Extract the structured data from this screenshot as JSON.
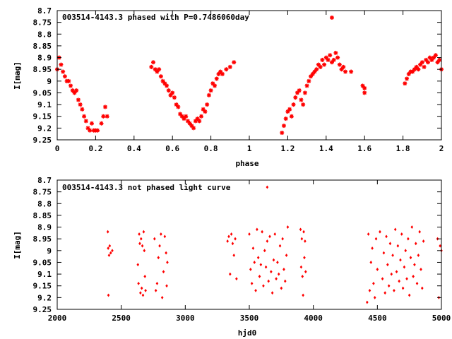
{
  "colors": {
    "points": "#ff0000",
    "axes": "#000000",
    "background": "#ffffff"
  },
  "chart_data": [
    {
      "type": "scatter",
      "title": "003514-4143.3 phased with P=0.7486060day",
      "xlabel": "phase",
      "ylabel": "I[mag]",
      "xlim": [
        0,
        2
      ],
      "ylim": [
        9.25,
        8.7
      ],
      "y_reversed": true,
      "xticks": [
        "0",
        "0.2",
        "0.4",
        "0.6",
        "0.8",
        "1",
        "1.2",
        "1.4",
        "1.6",
        "1.8",
        "2"
      ],
      "yticks": [
        "8.7",
        "8.75",
        "8.8",
        "8.85",
        "8.9",
        "8.95",
        "9",
        "9.05",
        "9.1",
        "9.15",
        "9.2",
        "9.25"
      ],
      "marker": "star",
      "series": [
        {
          "x": [
            0.0,
            0.01,
            0.02,
            0.03,
            0.04,
            0.05,
            0.06,
            0.07,
            0.08,
            0.09,
            0.1,
            0.11,
            0.12,
            0.13,
            0.14,
            0.15,
            0.16,
            0.17,
            0.18,
            0.19,
            0.2,
            0.21,
            0.23,
            0.24,
            0.25,
            0.26,
            0.49,
            0.5,
            0.51,
            0.52,
            0.53,
            0.54,
            0.55,
            0.56,
            0.57,
            0.58,
            0.59,
            0.6,
            0.61,
            0.62,
            0.63,
            0.64,
            0.65,
            0.66,
            0.67,
            0.68,
            0.69,
            0.7,
            0.71,
            0.72,
            0.73,
            0.74,
            0.75,
            0.76,
            0.77,
            0.78,
            0.79,
            0.8,
            0.81,
            0.82,
            0.83,
            0.84,
            0.85,
            0.86,
            0.88,
            0.9,
            0.92,
            1.17,
            1.18,
            1.19,
            1.2,
            1.21,
            1.22,
            1.23,
            1.24,
            1.25,
            1.26,
            1.27,
            1.28,
            1.29,
            1.3,
            1.31,
            1.32,
            1.33,
            1.34,
            1.35,
            1.36,
            1.37,
            1.38,
            1.39,
            1.4,
            1.41,
            1.42,
            1.43,
            1.44,
            1.45,
            1.46,
            1.47,
            1.48,
            1.49,
            1.5,
            1.53,
            1.59,
            1.6,
            1.6,
            1.81,
            1.82,
            1.83,
            1.84,
            1.85,
            1.86,
            1.87,
            1.88,
            1.89,
            1.9,
            1.91,
            1.92,
            1.93,
            1.94,
            1.95,
            1.96,
            1.97,
            1.98,
            1.99,
            2.0,
            1.43
          ],
          "y": [
            8.95,
            8.9,
            8.93,
            8.96,
            8.98,
            9.0,
            9.0,
            9.02,
            9.04,
            9.05,
            9.04,
            9.08,
            9.1,
            9.12,
            9.15,
            9.17,
            9.2,
            9.21,
            9.18,
            9.21,
            9.21,
            9.21,
            9.18,
            9.15,
            9.11,
            9.15,
            8.94,
            8.92,
            8.95,
            8.96,
            8.95,
            8.98,
            9.0,
            9.01,
            9.02,
            9.04,
            9.06,
            9.05,
            9.07,
            9.1,
            9.11,
            9.14,
            9.15,
            9.16,
            9.15,
            9.17,
            9.18,
            9.19,
            9.2,
            9.17,
            9.16,
            9.17,
            9.15,
            9.12,
            9.13,
            9.1,
            9.06,
            9.04,
            9.01,
            9.02,
            8.99,
            8.97,
            8.96,
            8.97,
            8.95,
            8.94,
            8.92,
            9.22,
            9.19,
            9.16,
            9.13,
            9.12,
            9.15,
            9.1,
            9.07,
            9.05,
            9.04,
            9.08,
            9.1,
            9.05,
            9.02,
            9.0,
            8.98,
            8.97,
            8.96,
            8.95,
            8.93,
            8.94,
            8.91,
            8.93,
            8.9,
            8.91,
            8.89,
            8.92,
            8.91,
            8.88,
            8.9,
            8.93,
            8.95,
            8.94,
            8.96,
            8.96,
            9.02,
            9.03,
            9.05,
            9.01,
            8.99,
            8.97,
            8.96,
            8.96,
            8.95,
            8.94,
            8.95,
            8.93,
            8.92,
            8.94,
            8.91,
            8.92,
            8.9,
            8.91,
            8.9,
            8.89,
            8.92,
            8.91,
            8.95,
            8.73
          ]
        }
      ]
    },
    {
      "type": "scatter",
      "title": "003514-4143.3 not phased light curve",
      "xlabel": "hjd0",
      "ylabel": "I[mag]",
      "xlim": [
        2000,
        5000
      ],
      "ylim": [
        9.25,
        8.7
      ],
      "y_reversed": true,
      "xticks": [
        "2000",
        "2500",
        "3000",
        "3500",
        "4000",
        "4500",
        "5000"
      ],
      "yticks": [
        "8.7",
        "8.75",
        "8.8",
        "8.85",
        "8.9",
        "8.95",
        "9",
        "9.05",
        "9.1",
        "9.15",
        "9.2",
        "9.25"
      ],
      "marker": "diamond",
      "series": [
        {
          "x": [
            2395,
            2398,
            2400,
            2405,
            2410,
            2418,
            2430,
            2630,
            2635,
            2640,
            2645,
            2650,
            2655,
            2660,
            2665,
            2670,
            2675,
            2680,
            2685,
            2690,
            2760,
            2770,
            2780,
            2790,
            2800,
            2810,
            2820,
            2830,
            2840,
            2850,
            2855,
            2860,
            3330,
            3340,
            3350,
            3360,
            3370,
            3380,
            3390,
            3400,
            3500,
            3510,
            3520,
            3530,
            3540,
            3550,
            3560,
            3570,
            3580,
            3590,
            3600,
            3610,
            3620,
            3630,
            3640,
            3650,
            3660,
            3670,
            3680,
            3690,
            3700,
            3710,
            3720,
            3730,
            3740,
            3750,
            3760,
            3770,
            3780,
            3790,
            3800,
            3900,
            3905,
            3910,
            3915,
            3920,
            3925,
            3930,
            3935,
            3940,
            4420,
            4430,
            4440,
            4450,
            4460,
            4470,
            4480,
            4490,
            4500,
            4520,
            4540,
            4550,
            4560,
            4570,
            4580,
            4590,
            4600,
            4610,
            4620,
            4630,
            4640,
            4650,
            4660,
            4670,
            4680,
            4690,
            4700,
            4710,
            4720,
            4730,
            4740,
            4750,
            4760,
            4770,
            4780,
            4790,
            4800,
            4810,
            4820,
            4830,
            4840,
            4850,
            4860,
            4970,
            4980,
            4990,
            5000,
            3640
          ],
          "y": [
            8.92,
            8.99,
            9.19,
            9.02,
            8.98,
            9.01,
            9.0,
            9.06,
            9.14,
            8.93,
            8.97,
            9.18,
            8.95,
            9.16,
            8.98,
            9.19,
            8.92,
            9.0,
            9.11,
            9.17,
            8.95,
            9.17,
            9.14,
            9.03,
            8.98,
            8.93,
            9.2,
            9.09,
            8.94,
            9.01,
            9.15,
            9.05,
            8.96,
            8.94,
            9.1,
            8.93,
            8.97,
            9.02,
            8.95,
            9.12,
            8.93,
            9.08,
            9.14,
            8.99,
            9.05,
            9.17,
            8.91,
            9.03,
            9.11,
            9.06,
            8.92,
            9.15,
            9.0,
            9.07,
            8.96,
            9.13,
            8.94,
            9.09,
            9.18,
            9.04,
            8.93,
            9.12,
            9.05,
            9.1,
            8.98,
            9.16,
            8.95,
            9.08,
            9.13,
            9.02,
            8.9,
            8.91,
            9.07,
            8.95,
            9.11,
            9.19,
            8.92,
            9.03,
            8.96,
            9.09,
            9.22,
            8.93,
            9.17,
            9.05,
            8.99,
            9.14,
            9.2,
            8.95,
            9.08,
            8.92,
            9.12,
            9.01,
            9.18,
            8.94,
            9.06,
            9.15,
            8.97,
            9.1,
            9.02,
            9.17,
            8.91,
            9.09,
            8.98,
            9.13,
            9.04,
            8.93,
            9.16,
            9.07,
            9.0,
            9.12,
            8.95,
            9.19,
            9.03,
            8.9,
            9.11,
            9.06,
            8.97,
            9.14,
            9.02,
            8.92,
            9.08,
            9.16,
            8.96,
            8.95,
            9.2,
            8.98,
            9.0,
            8.73
          ]
        }
      ]
    }
  ]
}
